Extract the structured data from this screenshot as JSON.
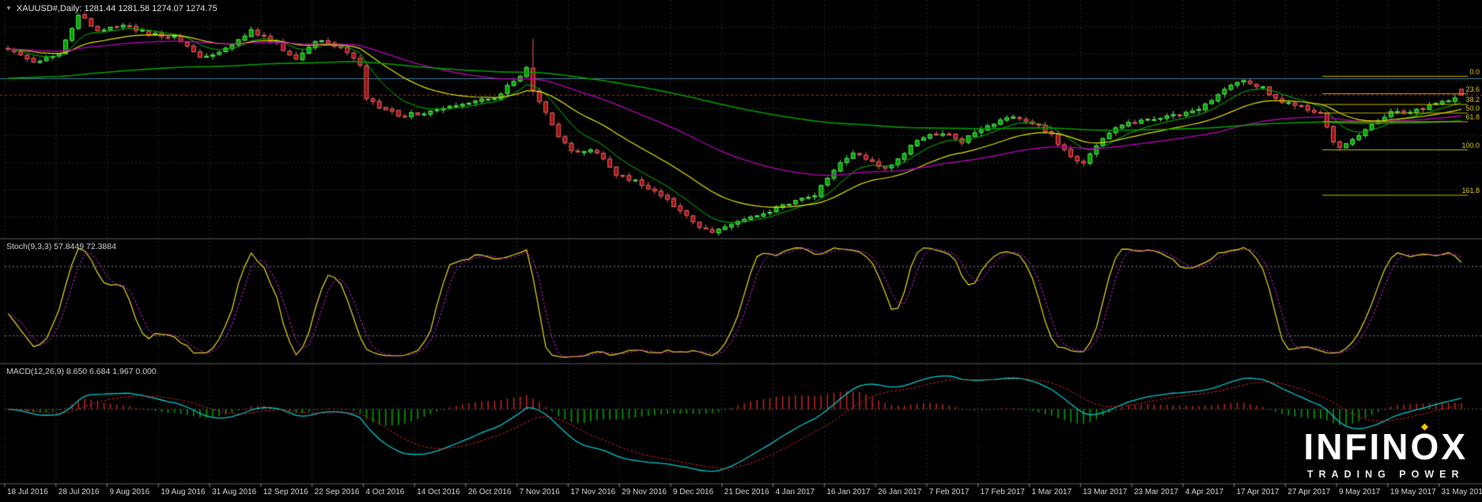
{
  "window": {
    "title_marker": "▼",
    "title": "XAUUSD#,Daily: 1281.44 1281.58 1274.07 1274.75"
  },
  "indicator_labels": {
    "stochastic": "Stoch(9,3,3) 57.8449 72.3884",
    "macd": "MACD(12,26,9) 8.650 6.684 1.967 0.000"
  },
  "logo": {
    "part1": "INFIN",
    "o_letter": "O",
    "part2": "X",
    "diamond": "◆",
    "tagline": "TRADING POWER"
  },
  "axis": {
    "dates": [
      "18 Jul 2016",
      "28 Jul 2016",
      "9 Aug 2016",
      "19 Aug 2016",
      "31 Aug 2016",
      "12 Sep 2016",
      "22 Sep 2016",
      "4 Oct 2016",
      "14 Oct 2016",
      "26 Oct 2016",
      "7 Nov 2016",
      "17 Nov 2016",
      "29 Nov 2016",
      "9 Dec 2016",
      "21 Dec 2016",
      "4 Jan 2017",
      "16 Jan 2017",
      "26 Jan 2017",
      "7 Feb 2017",
      "17 Feb 2017",
      "1 Mar 2017",
      "13 Mar 2017",
      "23 Mar 2017",
      "4 Apr 2017",
      "17 Apr 2017",
      "27 Apr 2017",
      "9 May 2017",
      "19 May 2017",
      "31 May 2017"
    ]
  },
  "fib_levels": [
    {
      "label": "0.0",
      "price": 1295.6
    },
    {
      "label": "23.6",
      "price": 1276.4
    },
    {
      "label": "38.2",
      "price": 1264.5
    },
    {
      "label": "50.0",
      "price": 1255.0
    },
    {
      "label": "61.8",
      "price": 1245.4
    },
    {
      "label": "100.0",
      "price": 1214.3
    },
    {
      "label": "161.8",
      "price": 1164.1
    }
  ],
  "chart_data": {
    "type": "candlestick",
    "symbol": "XAUUSD#",
    "timeframe": "Daily",
    "last_bar": {
      "open": 1281.44,
      "high": 1281.58,
      "low": 1274.07,
      "close": 1274.75
    },
    "price_range": {
      "min": 1116,
      "max": 1380
    },
    "bars_count": 228,
    "tick_every": 8,
    "noise": 2.2,
    "seed": 1337,
    "price_anchors": [
      [
        0,
        1327
      ],
      [
        4,
        1311
      ],
      [
        8,
        1322
      ],
      [
        11,
        1364
      ],
      [
        14,
        1347
      ],
      [
        18,
        1352
      ],
      [
        22,
        1342
      ],
      [
        26,
        1340
      ],
      [
        30,
        1316
      ],
      [
        34,
        1325
      ],
      [
        38,
        1346
      ],
      [
        42,
        1332
      ],
      [
        45,
        1314
      ],
      [
        48,
        1335
      ],
      [
        52,
        1327
      ],
      [
        55,
        1308
      ],
      [
        56,
        1270
      ],
      [
        58,
        1262
      ],
      [
        61,
        1252
      ],
      [
        64,
        1254
      ],
      [
        68,
        1262
      ],
      [
        72,
        1267
      ],
      [
        76,
        1272
      ],
      [
        79,
        1290
      ],
      [
        81,
        1304
      ],
      [
        82,
        1281
      ],
      [
        84,
        1255
      ],
      [
        86,
        1228
      ],
      [
        88,
        1214
      ],
      [
        92,
        1212
      ],
      [
        95,
        1186
      ],
      [
        99,
        1177
      ],
      [
        103,
        1160
      ],
      [
        107,
        1134
      ],
      [
        110,
        1124
      ],
      [
        113,
        1131
      ],
      [
        116,
        1138
      ],
      [
        119,
        1146
      ],
      [
        122,
        1155
      ],
      [
        126,
        1165
      ],
      [
        129,
        1192
      ],
      [
        132,
        1211
      ],
      [
        135,
        1200
      ],
      [
        137,
        1192
      ],
      [
        140,
        1211
      ],
      [
        143,
        1230
      ],
      [
        146,
        1233
      ],
      [
        149,
        1224
      ],
      [
        152,
        1236
      ],
      [
        155,
        1248
      ],
      [
        158,
        1251
      ],
      [
        160,
        1244
      ],
      [
        163,
        1230
      ],
      [
        166,
        1205
      ],
      [
        168,
        1199
      ],
      [
        171,
        1227
      ],
      [
        174,
        1243
      ],
      [
        177,
        1247
      ],
      [
        180,
        1250
      ],
      [
        183,
        1253
      ],
      [
        186,
        1257
      ],
      [
        189,
        1276
      ],
      [
        192,
        1289
      ],
      [
        193,
        1293
      ],
      [
        196,
        1282
      ],
      [
        199,
        1266
      ],
      [
        202,
        1262
      ],
      [
        205,
        1253
      ],
      [
        207,
        1222
      ],
      [
        208,
        1216
      ],
      [
        211,
        1230
      ],
      [
        213,
        1242
      ],
      [
        215,
        1252
      ],
      [
        217,
        1258
      ],
      [
        219,
        1254
      ],
      [
        221,
        1261
      ],
      [
        223,
        1266
      ],
      [
        225,
        1268
      ],
      [
        227,
        1272
      ]
    ],
    "wick_events": [
      [
        82,
        1337
      ]
    ],
    "support_line": {
      "price": 1293,
      "color": "#4a7aa0"
    },
    "bid_line": {
      "price": 1274.75,
      "color": "#c22020"
    },
    "moving_averages": [
      {
        "period": 8,
        "color": "#00c000",
        "width": 1
      },
      {
        "period": 21,
        "color": "#e2e200",
        "width": 1.2
      },
      {
        "period": 55,
        "color": "#b800b8",
        "width": 1.3
      },
      {
        "period": 170,
        "color": "#009a00",
        "width": 1.6,
        "seed": 1293
      }
    ],
    "stochastic": {
      "k_period": 9,
      "slowing": 3,
      "d_period": 3,
      "levels": [
        20,
        80
      ],
      "k_value": 57.8449,
      "d_value": 72.3884,
      "k_color": "#d8c81e",
      "d_color": "#c81ec8",
      "level_color": "#8a8a8a"
    },
    "macd": {
      "fast": 12,
      "slow": 26,
      "signal_period": 9,
      "values": [
        8.65,
        6.684,
        1.967,
        0.0
      ],
      "line_color": "#00c8d0",
      "signal_color": "#cc2222",
      "hist_up": "#b82222",
      "hist_down": "#00a000"
    },
    "grid": {
      "color": "#1e321e",
      "price_lines": [
        1140,
        1170,
        1200,
        1230,
        1260,
        1290,
        1320,
        1350
      ]
    },
    "candle": {
      "up_fill": "#00a000",
      "up_stroke": "#58e858",
      "down_fill": "#9c1414",
      "down_stroke": "#e86060"
    }
  },
  "colors": {
    "background": "#000000",
    "separator": "#5e5e5e",
    "fib": "#c8b400",
    "text": "#d6d6d6"
  }
}
